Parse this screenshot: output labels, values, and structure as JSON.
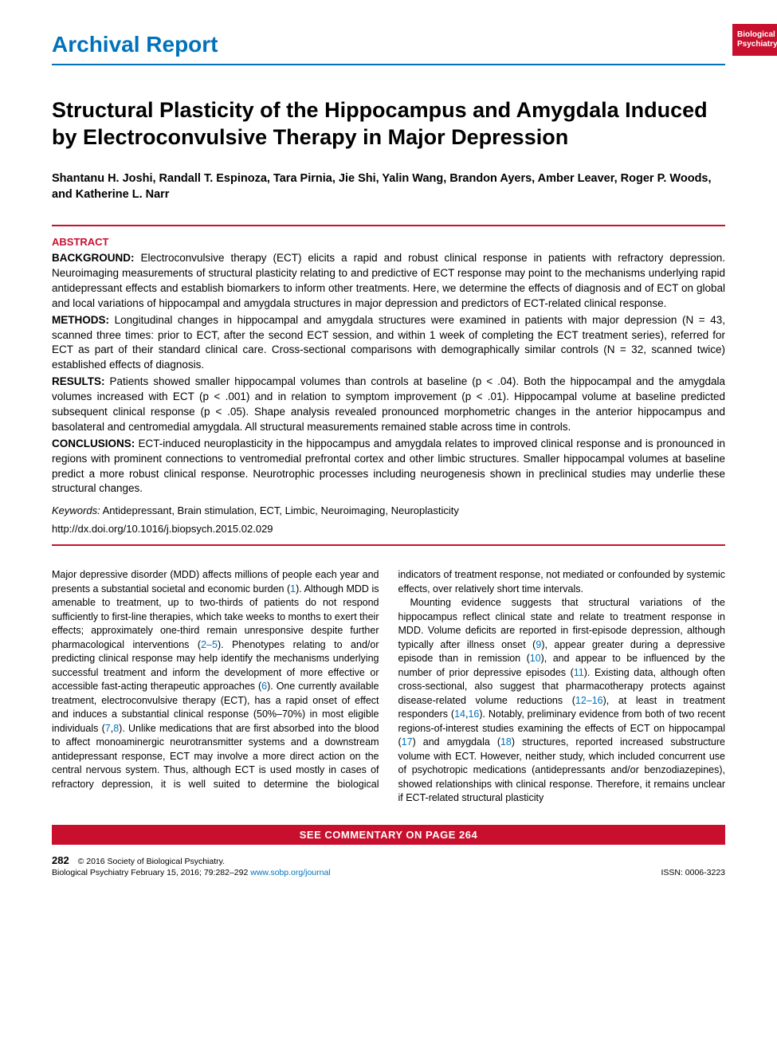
{
  "journalTab": {
    "line1": "Biological",
    "line2": "Psychiatry"
  },
  "sectionLabel": "Archival Report",
  "title": "Structural Plasticity of the Hippocampus and Amygdala Induced by Electroconvulsive Therapy in Major Depression",
  "authors": "Shantanu H. Joshi, Randall T. Espinoza, Tara Pirnia, Jie Shi, Yalin Wang, Brandon Ayers, Amber Leaver, Roger P. Woods, and Katherine L. Narr",
  "abstract": {
    "heading": "ABSTRACT",
    "background": {
      "label": "BACKGROUND:",
      "text": "Electroconvulsive therapy (ECT) elicits a rapid and robust clinical response in patients with refractory depression. Neuroimaging measurements of structural plasticity relating to and predictive of ECT response may point to the mechanisms underlying rapid antidepressant effects and establish biomarkers to inform other treatments. Here, we determine the effects of diagnosis and of ECT on global and local variations of hippocampal and amygdala structures in major depression and predictors of ECT-related clinical response."
    },
    "methods": {
      "label": "METHODS:",
      "text": "Longitudinal changes in hippocampal and amygdala structures were examined in patients with major depression (N = 43, scanned three times: prior to ECT, after the second ECT session, and within 1 week of completing the ECT treatment series), referred for ECT as part of their standard clinical care. Cross-sectional comparisons with demographically similar controls (N = 32, scanned twice) established effects of diagnosis."
    },
    "results": {
      "label": "RESULTS:",
      "text": "Patients showed smaller hippocampal volumes than controls at baseline (p < .04). Both the hippocampal and the amygdala volumes increased with ECT (p < .001) and in relation to symptom improvement (p < .01). Hippocampal volume at baseline predicted subsequent clinical response (p < .05). Shape analysis revealed pronounced morphometric changes in the anterior hippocampus and basolateral and centromedial amygdala. All structural measurements remained stable across time in controls."
    },
    "conclusions": {
      "label": "CONCLUSIONS:",
      "text": "ECT-induced neuroplasticity in the hippocampus and amygdala relates to improved clinical response and is pronounced in regions with prominent connections to ventromedial prefrontal cortex and other limbic structures. Smaller hippocampal volumes at baseline predict a more robust clinical response. Neurotrophic processes including neurogenesis shown in preclinical studies may underlie these structural changes."
    },
    "keywords": {
      "label": "Keywords:",
      "text": "Antidepressant, Brain stimulation, ECT, Limbic, Neuroimaging, Neuroplasticity"
    },
    "doi": "http://dx.doi.org/10.1016/j.biopsych.2015.02.029"
  },
  "body": {
    "p1a": "Major depressive disorder (MDD) affects millions of people each year and presents a substantial societal and economic burden (",
    "c1": "1",
    "p1b": "). Although MDD is amenable to treatment, up to two-thirds of patients do not respond sufficiently to first-line therapies, which take weeks to months to exert their effects; approximately one-third remain unresponsive despite further pharmacological interventions (",
    "c2": "2–5",
    "p1c": "). Phenotypes relating to and/or predicting clinical response may help identify the mechanisms underlying successful treatment and inform the development of more effective or accessible fast-acting therapeutic approaches (",
    "c3": "6",
    "p1d": "). One currently available treatment, electroconvulsive therapy (ECT), has a rapid onset of effect and induces a substantial clinical response (50%–70%) in most eligible individuals (",
    "c4": "7",
    "p1e": ",",
    "c5": "8",
    "p1f": "). Unlike medications that are first absorbed into the blood to affect monoaminergic neurotransmitter systems and a downstream antidepressant response, ECT may involve a more direct action on the central nervous system. Thus, although ECT is used mostly in cases of refractory depression, it is well suited to determine the biological indicators of treatment response, not mediated or confounded by systemic effects, over relatively short time intervals.",
    "p2a": "Mounting evidence suggests that structural variations of the hippocampus reflect clinical state and relate to treatment response in MDD. Volume deficits are reported in first-episode depression, although typically after illness onset (",
    "c6": "9",
    "p2b": "), appear greater during a depressive episode than in remission (",
    "c7": "10",
    "p2c": "), and appear to be influenced by the number of prior depressive episodes (",
    "c8": "11",
    "p2d": "). Existing data, although often cross-sectional, also suggest that pharmacotherapy protects against disease-related volume reductions (",
    "c9": "12–16",
    "p2e": "), at least in treatment responders (",
    "c10": "14",
    "p2f": ",",
    "c11": "16",
    "p2g": "). Notably, preliminary evidence from both of two recent regions-of-interest studies examining the effects of ECT on hippocampal (",
    "c12": "17",
    "p2h": ") and amygdala (",
    "c13": "18",
    "p2i": ") structures, reported increased substructure volume with ECT. However, neither study, which included concurrent use of psychotropic medications (antidepressants and/or benzodiazepines), showed relationships with clinical response. Therefore, it remains unclear if ECT-related structural plasticity"
  },
  "commentary": "SEE COMMENTARY ON PAGE 264",
  "footer": {
    "pageNum": "282",
    "copyright": "© 2016 Society of Biological Psychiatry.",
    "citation": "Biological Psychiatry February 15, 2016; 79:282–292 ",
    "url": "www.sobp.org/journal",
    "issn": "ISSN: 0006-3223"
  }
}
